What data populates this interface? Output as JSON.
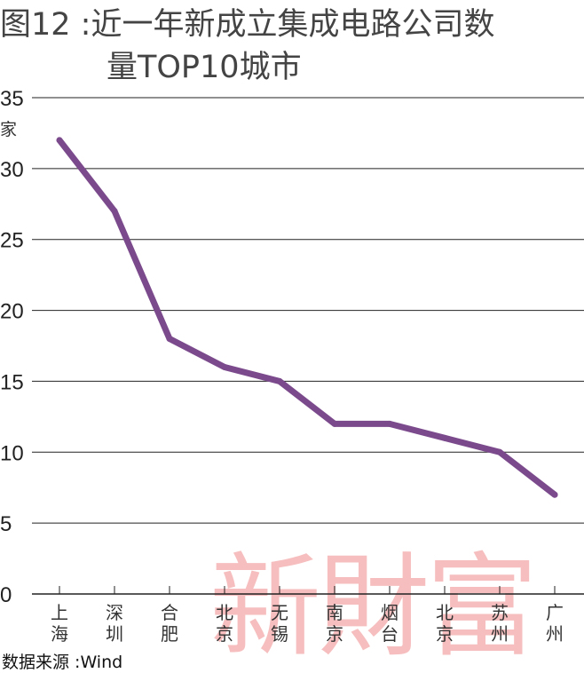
{
  "title": {
    "line1": "图12 :近一年新成立集成电路公司数",
    "line2": "量TOP10城市"
  },
  "chart_data": {
    "type": "line",
    "unit_label": "家",
    "categories": [
      [
        "上",
        "海"
      ],
      [
        "深",
        "圳"
      ],
      [
        "合",
        "肥"
      ],
      [
        "北",
        "京"
      ],
      [
        "无",
        "锡"
      ],
      [
        "南",
        "京"
      ],
      [
        "烟",
        "台"
      ],
      [
        "北",
        "京"
      ],
      [
        "苏",
        "州"
      ],
      [
        "广",
        "州"
      ]
    ],
    "series": [
      {
        "values": [
          32,
          27,
          18,
          16,
          15,
          12,
          12,
          11,
          10,
          7
        ]
      }
    ],
    "ylim": [
      0,
      35
    ],
    "yticks": [
      0,
      5,
      10,
      15,
      20,
      25,
      30,
      35
    ],
    "grid": true,
    "line_color": "#7b4a8c",
    "grid_color": "#222222"
  },
  "source": "数据来源 :Wind",
  "watermark": "新财富"
}
